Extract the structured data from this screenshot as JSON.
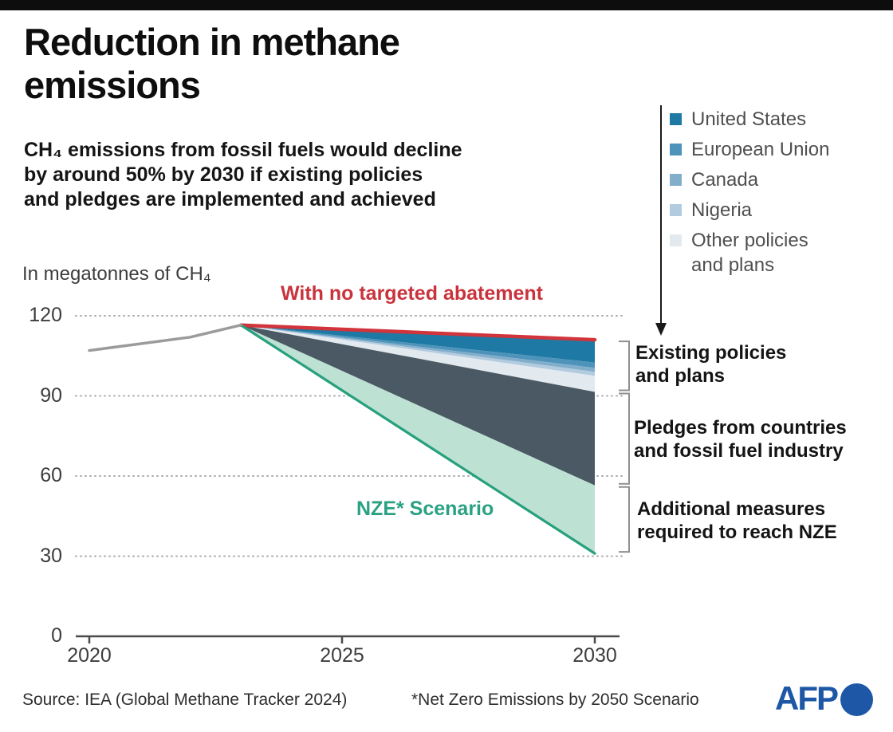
{
  "header": {
    "title": "Reduction in methane\nemissions",
    "subtitle": "CH₄ emissions from fossil fuels would decline\nby around 50% by 2030 if existing policies\nand pledges are implemented and achieved"
  },
  "chart_data": {
    "type": "area",
    "title": "Reduction in methane emissions",
    "unit_label": "In megatonnes of CH₄",
    "xlim": [
      2020,
      2030
    ],
    "ylim": [
      0,
      128
    ],
    "x_ticks": [
      2020,
      2025,
      2030
    ],
    "y_ticks": [
      0,
      30,
      60,
      90,
      120
    ],
    "grid": "dotted-horizontal",
    "historical_line": {
      "name": "Historical emissions",
      "color": "#9b9b9b",
      "x": [
        2020,
        2022,
        2023
      ],
      "y": [
        107,
        112,
        116.5
      ]
    },
    "fan": {
      "start": {
        "year": 2023,
        "value": 116.5
      },
      "end_year": 2030,
      "top_line": {
        "label": "With no targeted abatement",
        "end_value": 111,
        "color": "#d1343b"
      },
      "bands": [
        {
          "name": "United States",
          "end_value": 102.5,
          "color": "#1e79a4"
        },
        {
          "name": "European Union",
          "end_value": 100.5,
          "color": "#4d93ba"
        },
        {
          "name": "Canada",
          "end_value": 99,
          "color": "#82aecb"
        },
        {
          "name": "Nigeria",
          "end_value": 97.5,
          "color": "#b3cbdf"
        },
        {
          "name": "Other policies and plans",
          "end_value": 91.5,
          "color": "#e3eaef"
        },
        {
          "name": "Pledges from countries and fossil fuel industry",
          "end_value": 56.5,
          "color": "#4a5963"
        },
        {
          "name": "Additional measures required to reach NZE",
          "end_value": 31,
          "color": "#bde1d3"
        }
      ],
      "bottom_line": {
        "label": "NZE* Scenario",
        "end_value": 31,
        "color": "#27a07d"
      }
    },
    "legend": {
      "items": [
        {
          "label": "United States",
          "color": "#1e79a4"
        },
        {
          "label": "European Union",
          "color": "#4d93ba"
        },
        {
          "label": "Canada",
          "color": "#82aecb"
        },
        {
          "label": "Nigeria",
          "color": "#b3cbdf"
        },
        {
          "label": "Other policies and plans",
          "color": "#e3eaef"
        }
      ]
    },
    "annotations": [
      {
        "lines": [
          "Existing policies",
          "and plans"
        ]
      },
      {
        "lines": [
          "Pledges from countries",
          "and fossil fuel industry"
        ]
      },
      {
        "lines": [
          "Additional measures",
          "required to reach NZE"
        ]
      }
    ]
  },
  "footer": {
    "source": "Source: IEA (Global Methane Tracker 2024)",
    "footnote": "*Net Zero Emissions by 2050 Scenario",
    "logo_text": "AFP",
    "logo_color": "#1e57a5"
  }
}
